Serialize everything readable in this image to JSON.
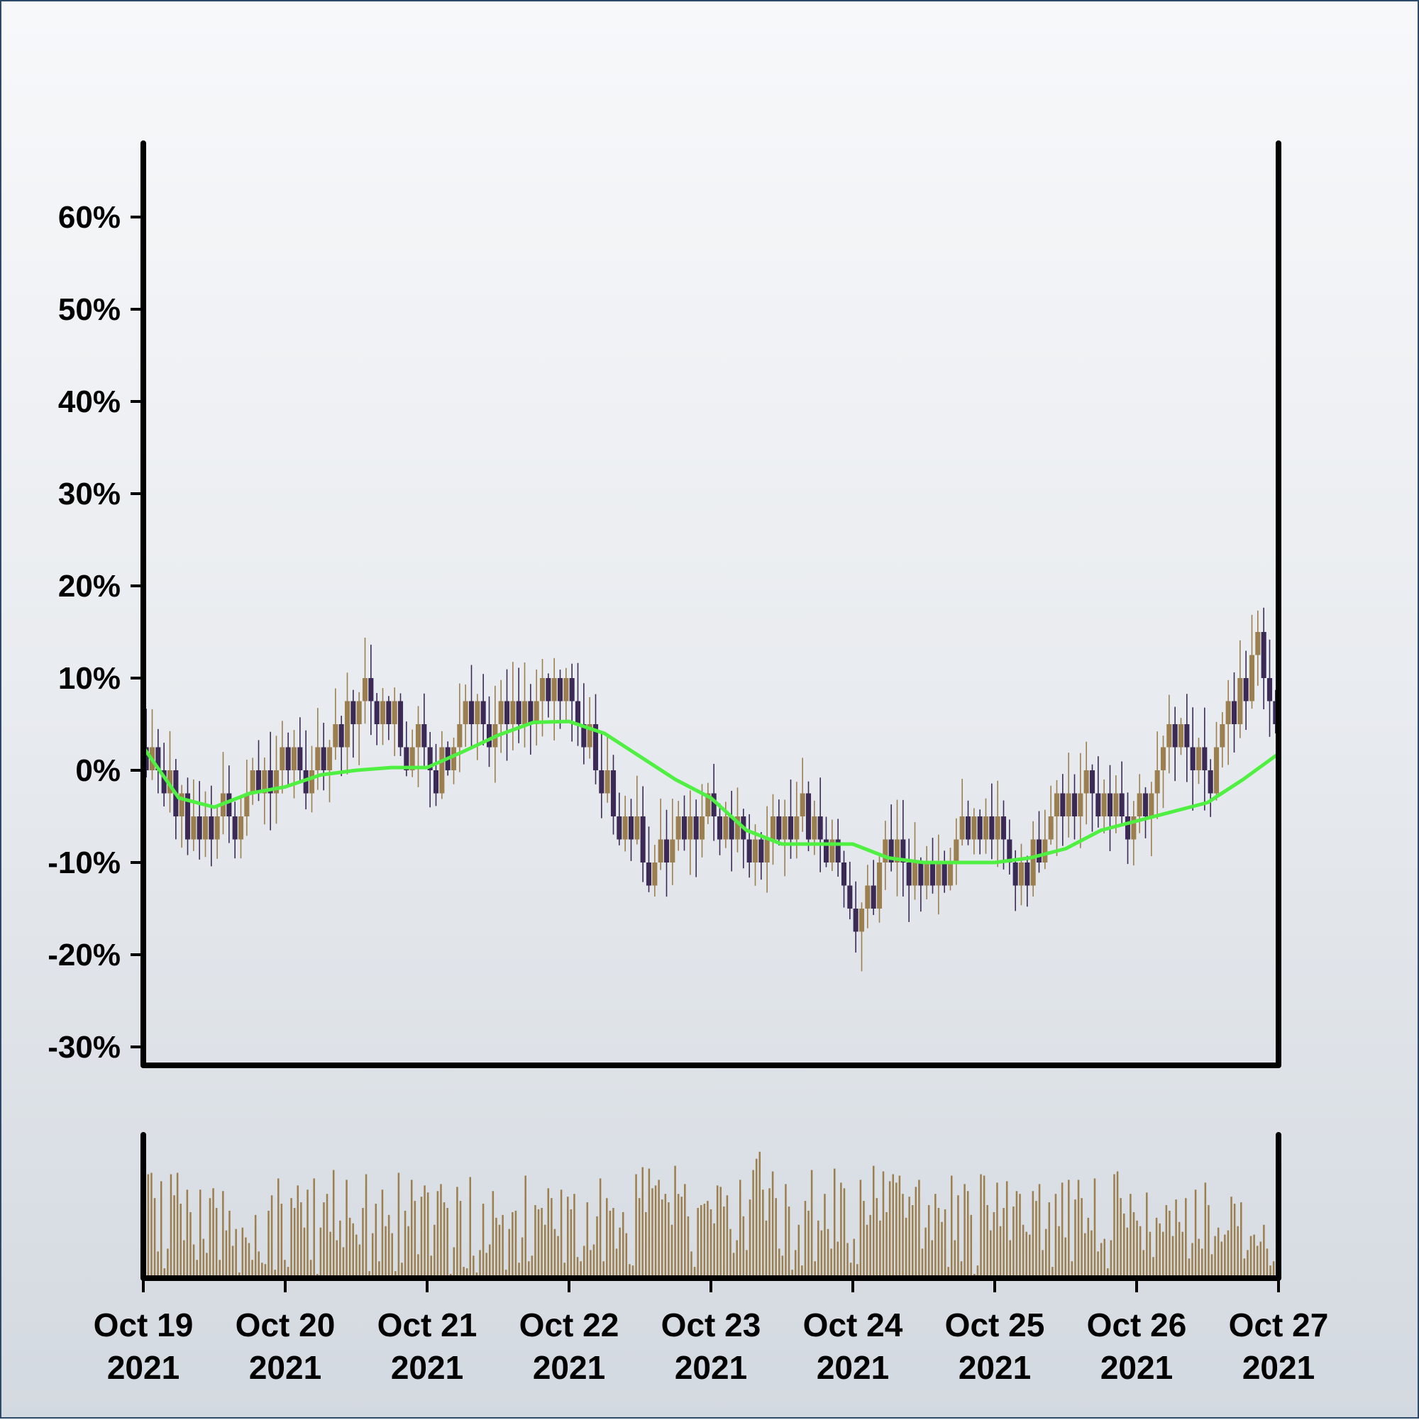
{
  "chart_data": {
    "type": "candlestick",
    "title": "",
    "xlabel": "",
    "ylabel": "",
    "y_axis": {
      "format": "percent",
      "ylim": [
        -32,
        68
      ],
      "ticks": [
        "60%",
        "50%",
        "40%",
        "30%",
        "20%",
        "10%",
        "0%",
        "-10%",
        "-20%",
        "-30%"
      ],
      "tick_values": [
        60,
        50,
        40,
        30,
        20,
        10,
        0,
        -10,
        -20,
        -30
      ]
    },
    "x_axis": {
      "xlim": [
        "2021-10-19 00:00",
        "2021-10-27 00:00"
      ],
      "ticks": [
        {
          "value": "2021-10-19",
          "line1": "Oct 19",
          "line2": "2021"
        },
        {
          "value": "2021-10-20",
          "line1": "Oct 20",
          "line2": "2021"
        },
        {
          "value": "2021-10-21",
          "line1": "Oct 21",
          "line2": "2021"
        },
        {
          "value": "2021-10-22",
          "line1": "Oct 22",
          "line2": "2021"
        },
        {
          "value": "2021-10-23",
          "line1": "Oct 23",
          "line2": "2021"
        },
        {
          "value": "2021-10-24",
          "line1": "Oct 24",
          "line2": "2021"
        },
        {
          "value": "2021-10-25",
          "line1": "Oct 25",
          "line2": "2021"
        },
        {
          "value": "2021-10-26",
          "line1": "Oct 26",
          "line2": "2021"
        },
        {
          "value": "2021-10-27",
          "line1": "Oct 27",
          "line2": "2021"
        }
      ]
    },
    "candle_interval": "1h",
    "close_path": [
      {
        "time": "2021-10-19 00:00",
        "close": 3
      },
      {
        "time": "2021-10-19 08:00",
        "close": -8
      },
      {
        "time": "2021-10-19 14:00",
        "close": -6
      },
      {
        "time": "2021-10-20 00:00",
        "close": 2
      },
      {
        "time": "2021-10-20 04:00",
        "close": -1
      },
      {
        "time": "2021-10-20 12:00",
        "close": 8
      },
      {
        "time": "2021-10-20 20:00",
        "close": 3
      },
      {
        "time": "2021-10-21 02:00",
        "close": 1
      },
      {
        "time": "2021-10-21 08:00",
        "close": 6
      },
      {
        "time": "2021-10-21 14:00",
        "close": 4
      },
      {
        "time": "2021-10-21 22:00",
        "close": 11
      },
      {
        "time": "2021-10-22 06:00",
        "close": -3
      },
      {
        "time": "2021-10-22 14:00",
        "close": -11
      },
      {
        "time": "2021-10-22 22:00",
        "close": -4
      },
      {
        "time": "2021-10-23 04:00",
        "close": -4
      },
      {
        "time": "2021-10-23 08:00",
        "close": -9
      },
      {
        "time": "2021-10-23 14:00",
        "close": -6
      },
      {
        "time": "2021-10-23 20:00",
        "close": -7
      },
      {
        "time": "2021-10-24 00:00",
        "close": -16
      },
      {
        "time": "2021-10-24 06:00",
        "close": -8
      },
      {
        "time": "2021-10-24 14:00",
        "close": -11
      },
      {
        "time": "2021-10-24 22:00",
        "close": -6
      },
      {
        "time": "2021-10-25 04:00",
        "close": -10
      },
      {
        "time": "2021-10-25 12:00",
        "close": -5
      },
      {
        "time": "2021-10-25 18:00",
        "close": -2
      },
      {
        "time": "2021-10-26 00:00",
        "close": -6
      },
      {
        "time": "2021-10-26 08:00",
        "close": 5
      },
      {
        "time": "2021-10-26 12:00",
        "close": 0
      },
      {
        "time": "2021-10-26 20:00",
        "close": 13
      },
      {
        "time": "2021-10-27 00:00",
        "close": 4
      }
    ],
    "moving_average": [
      {
        "time": "2021-10-19 00:00",
        "value": 2.5
      },
      {
        "time": "2021-10-19 06:00",
        "value": -3
      },
      {
        "time": "2021-10-19 12:00",
        "value": -4
      },
      {
        "time": "2021-10-19 18:00",
        "value": -2.5
      },
      {
        "time": "2021-10-20 00:00",
        "value": -1.8
      },
      {
        "time": "2021-10-20 06:00",
        "value": -0.5
      },
      {
        "time": "2021-10-20 12:00",
        "value": 0
      },
      {
        "time": "2021-10-20 18:00",
        "value": 0.3
      },
      {
        "time": "2021-10-21 00:00",
        "value": 0.3
      },
      {
        "time": "2021-10-21 06:00",
        "value": 2
      },
      {
        "time": "2021-10-21 12:00",
        "value": 3.8
      },
      {
        "time": "2021-10-21 18:00",
        "value": 5.2
      },
      {
        "time": "2021-10-22 00:00",
        "value": 5.3
      },
      {
        "time": "2021-10-22 06:00",
        "value": 4
      },
      {
        "time": "2021-10-22 12:00",
        "value": 1.5
      },
      {
        "time": "2021-10-22 18:00",
        "value": -1
      },
      {
        "time": "2021-10-23 00:00",
        "value": -3
      },
      {
        "time": "2021-10-23 06:00",
        "value": -6.5
      },
      {
        "time": "2021-10-23 12:00",
        "value": -8
      },
      {
        "time": "2021-10-23 18:00",
        "value": -8
      },
      {
        "time": "2021-10-24 00:00",
        "value": -8
      },
      {
        "time": "2021-10-24 06:00",
        "value": -9.5
      },
      {
        "time": "2021-10-24 12:00",
        "value": -10
      },
      {
        "time": "2021-10-24 18:00",
        "value": -10
      },
      {
        "time": "2021-10-25 00:00",
        "value": -10
      },
      {
        "time": "2021-10-25 06:00",
        "value": -9.5
      },
      {
        "time": "2021-10-25 12:00",
        "value": -8.5
      },
      {
        "time": "2021-10-25 18:00",
        "value": -6.5
      },
      {
        "time": "2021-10-26 00:00",
        "value": -5.5
      },
      {
        "time": "2021-10-26 06:00",
        "value": -4.5
      },
      {
        "time": "2021-10-26 12:00",
        "value": -3.5
      },
      {
        "time": "2021-10-26 18:00",
        "value": -1
      },
      {
        "time": "2021-10-27 00:00",
        "value": 1.8
      }
    ],
    "volume": {
      "visible_axis": false,
      "note_scale": "relative, 0–1",
      "levels": [
        0.1,
        0.74,
        0.75,
        0.57,
        0.19,
        0.69,
        0.07,
        0.21,
        0.74,
        0.59,
        0.75,
        0.53,
        0.27,
        0.63,
        0.47,
        0.24,
        0.13,
        0.63,
        0.28,
        0.18,
        0.57,
        0.64,
        0.5,
        0.13,
        0.62,
        0.34,
        0.48,
        0.23,
        0.35,
        0.04,
        0.36,
        0.29,
        0.25,
        0.13,
        0.45,
        0.19,
        0.11,
        0.1,
        0.48,
        0.59,
        0.06,
        0.71,
        0.53,
        0.13,
        0.08,
        0.57,
        0.5,
        0.66,
        0.54,
        0.36,
        0.63,
        0.13,
        0.71,
        0.03,
        0.36,
        0.54,
        0.6,
        0.33,
        0.77,
        0.27,
        0.41,
        0.22,
        0.7,
        0.43,
        0.39,
        0.31,
        0.24,
        0.5,
        0.74,
        0.05,
        0.32,
        0.53,
        0.12,
        0.63,
        0.37,
        0.45,
        0.32,
        0.05,
        0.75,
        0.11,
        0.48,
        0.37,
        0.7,
        0.55,
        0.17,
        0.58,
        0.66,
        0.61,
        0.16,
        0.38,
        0.62,
        0.67,
        0.54,
        0.5,
        0.03,
        0.22,
        0.65,
        0.55,
        0.08,
        0.07,
        0.72,
        0.16,
        0.04,
        0.2,
        0.53,
        0.18,
        0.24,
        0.62,
        0.43,
        0.38,
        0.45,
        0.06,
        0.35,
        0.47,
        0.48,
        0.11,
        0.29,
        0.73,
        0.12,
        0.16,
        0.52,
        0.49,
        0.5,
        0.38,
        0.64,
        0.57,
        0.35,
        0.3,
        0.63,
        0.11,
        0.58,
        0.49,
        0.6,
        0.15,
        0.12,
        0.23,
        0.54,
        0.2,
        0.24,
        0.44,
        0.71,
        0.12,
        0.57,
        0.48,
        0.5,
        0.21,
        0.36,
        0.47,
        0.32,
        0.1,
        0.09,
        0.74,
        0.57,
        0.79,
        0.47,
        0.78,
        0.64,
        0.66,
        0.7,
        0.56,
        0.6,
        0.54,
        0.38,
        0.8,
        0.6,
        0.58,
        0.67,
        0.44,
        0.19,
        0.08,
        0.5,
        0.52,
        0.53,
        0.55,
        0.49,
        0.39,
        0.66,
        0.65,
        0.51,
        0.59,
        0.35,
        0.18,
        0.27,
        0.7,
        0.44,
        0.2,
        0.56,
        0.77,
        0.85,
        0.9,
        0.63,
        0.41,
        0.64,
        0.76,
        0.57,
        0.21,
        0.16,
        0.67,
        0.51,
        0.06,
        0.2,
        0.38,
        0.09,
        0.55,
        0.48,
        0.77,
        0.12,
        0.41,
        0.34,
        0.6,
        0.35,
        0.21,
        0.78,
        0.26,
        0.68,
        0.64,
        0.25,
        0.11,
        0.28,
        0.1,
        0.7,
        0.55,
        0.38,
        0.45,
        0.8,
        0.57,
        0.41,
        0.76,
        0.47,
        0.69,
        0.74,
        0.68,
        0.73,
        0.6,
        0.43,
        0.58,
        0.52,
        0.65,
        0.7,
        0.21,
        0.36,
        0.52,
        0.27,
        0.6,
        0.5,
        0.4,
        0.49,
        0.08,
        0.73,
        0.27,
        0.59,
        0.12,
        0.67,
        0.62,
        0.45,
        0.03,
        0.09,
        0.74,
        0.73,
        0.52,
        0.34,
        0.47,
        0.68,
        0.37,
        0.5,
        0.69,
        0.27,
        0.51,
        0.62,
        0.6,
        0.38,
        0.33,
        0.31,
        0.62,
        0.55,
        0.67,
        0.2,
        0.35,
        0.54,
        0.08,
        0.6,
        0.37,
        0.68,
        0.29,
        0.7,
        0.12,
        0.56,
        0.7,
        0.57,
        0.32,
        0.43,
        0.34,
        0.71,
        0.19,
        0.25,
        0.28,
        0.07,
        0.27,
        0.74,
        0.76,
        0.57,
        0.46,
        0.36,
        0.6,
        0.47,
        0.41,
        0.37,
        0.2,
        0.61,
        0.33,
        0.15,
        0.43,
        0.39,
        0.33,
        0.52,
        0.48,
        0.3,
        0.56,
        0.4,
        0.33,
        0.57,
        0.14,
        0.25,
        0.63,
        0.28,
        0.21,
        0.68,
        0.52,
        0.17,
        0.3,
        0.36,
        0.26,
        0.31,
        0.34,
        0.58,
        0.53,
        0.37,
        0.54,
        0.14,
        0.2,
        0.3,
        0.31,
        0.23,
        0.26,
        0.38,
        0.21,
        0.09,
        0.12,
        0.22
      ]
    },
    "colors": {
      "up": "#9c7f4f",
      "down": "#3b2a55",
      "moving_average": "#4ff041",
      "axis": "#000000",
      "background_top": "#f7f8fa",
      "background_bottom": "#d3d9e0",
      "border": "#2d4a6b"
    },
    "grid": false,
    "legend": "none"
  }
}
